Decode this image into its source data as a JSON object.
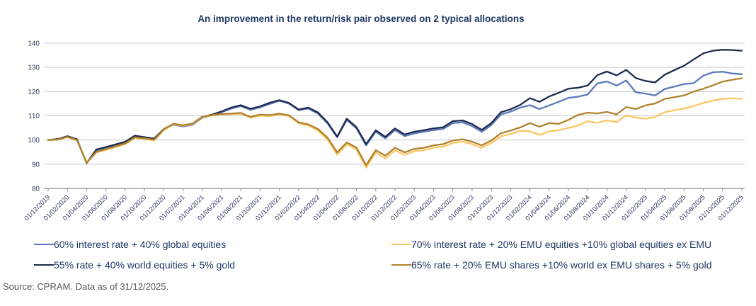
{
  "title": "An improvement in the return/risk pair observed on 2 typical allocations",
  "source": "Source: CPRAM. Data as of 31/12/2025.",
  "colors": {
    "navy": "#1f2c4f",
    "blue": "#5b7abc",
    "gold": "#b08230",
    "yellow": "#fac763",
    "title_text": "#1f3864",
    "axis_text": "#2e3b5e",
    "gridline": "#c9c9c9",
    "axis_line": "#8c8c8c",
    "source_text": "#595959"
  },
  "legend": {
    "items": [
      {
        "label": "60% interest rate + 40% global equities",
        "color_key": "blue"
      },
      {
        "label": "70% interest rate + 20% EMU equities +10% global equities ex EMU",
        "color_key": "yellow"
      },
      {
        "label": "55% rate + 40% world equities + 5% gold",
        "color_key": "navy"
      },
      {
        "label": "65% rate + 20% EMU shares +10% world ex EMU shares + 5% gold",
        "color_key": "gold"
      }
    ]
  },
  "chart_data": {
    "type": "line",
    "title": "An improvement in the return/risk pair observed on 2 typical allocations",
    "xlabel": "",
    "ylabel": "",
    "ylim": [
      80,
      140
    ],
    "y_ticks": [
      80,
      90,
      100,
      110,
      120,
      130,
      140
    ],
    "grid": "horizontal",
    "legend_position": "bottom",
    "x_frequency": "monthly",
    "x_start": "01/12/2019",
    "x_end": "01/12/2025",
    "x_tick_labels": [
      "01/12/2019",
      "01/02/2020",
      "01/04/2020",
      "01/06/2020",
      "01/08/2020",
      "01/10/2020",
      "01/12/2020",
      "01/02/2021",
      "01/04/2021",
      "01/06/2021",
      "01/08/2021",
      "01/10/2021",
      "01/12/2021",
      "01/02/2022",
      "01/04/2022",
      "01/06/2022",
      "01/08/2022",
      "01/10/2022",
      "01/12/2022",
      "01/02/2023",
      "01/04/2023",
      "01/06/2023",
      "01/08/2023",
      "01/10/2023",
      "01/12/2023",
      "01/02/2024",
      "01/04/2024",
      "01/06/2024",
      "01/08/2024",
      "01/10/2024",
      "01/12/2024",
      "01/02/2025",
      "01/04/2025",
      "01/06/2025",
      "01/08/2025",
      "01/10/2025",
      "01/12/2025"
    ],
    "series": [
      {
        "name": "60% interest rate + 40% global equities",
        "color_key": "blue",
        "values": [
          100,
          100.3,
          101.4,
          100.1,
          90.7,
          95.6,
          96.6,
          97.8,
          98.9,
          101.4,
          100.8,
          100.2,
          104.2,
          106.3,
          105.6,
          106.3,
          109.2,
          110.2,
          111.5,
          113.0,
          114.0,
          112.5,
          113.5,
          114.9,
          116.2,
          115.0,
          112.3,
          113.0,
          110.9,
          106.9,
          101.1,
          108.3,
          104.8,
          97.8,
          103.4,
          100.7,
          104.1,
          101.6,
          102.7,
          103.4,
          104.1,
          104.6,
          107.0,
          107.3,
          105.8,
          103.4,
          106.2,
          110.6,
          111.7,
          113.4,
          114.4,
          112.8,
          114.3,
          115.8,
          117.4,
          117.9,
          118.8,
          123.4,
          124.2,
          122.5,
          124.6,
          119.7,
          119.2,
          118.4,
          121.1,
          122.1,
          123.1,
          123.5,
          126.6,
          128.0,
          128.2,
          127.5,
          127.2
        ]
      },
      {
        "name": "55% rate + 40% world equities + 5% gold",
        "color_key": "navy",
        "values": [
          100,
          100.4,
          101.6,
          100.3,
          90.4,
          96.1,
          97.1,
          98.2,
          99.3,
          101.8,
          101.2,
          100.6,
          104.5,
          106.6,
          105.9,
          106.6,
          109.5,
          110.5,
          111.8,
          113.4,
          114.4,
          112.9,
          113.9,
          115.4,
          116.5,
          115.3,
          112.6,
          113.4,
          111.4,
          107.3,
          101.4,
          108.8,
          105.3,
          98.3,
          104.0,
          101.3,
          104.8,
          102.3,
          103.4,
          104.1,
          104.8,
          105.3,
          107.8,
          108.1,
          106.6,
          104.2,
          107.0,
          111.5,
          112.7,
          114.5,
          117.3,
          115.8,
          118.0,
          119.5,
          121.2,
          121.6,
          122.5,
          126.8,
          128.3,
          126.7,
          129.0,
          125.6,
          124.4,
          123.8,
          127.0,
          128.9,
          130.7,
          133.3,
          135.8,
          136.9,
          137.3,
          137.2,
          136.9
        ]
      },
      {
        "name": "70% interest rate + 20% EMU equities +10% global equities ex EMU",
        "color_key": "yellow",
        "values": [
          100,
          100.1,
          101.2,
          99.9,
          90.8,
          94.8,
          95.9,
          97.1,
          98.3,
          100.8,
          100.4,
          99.8,
          104.0,
          106.5,
          105.9,
          106.6,
          109.5,
          110.1,
          110.6,
          110.7,
          110.9,
          109.2,
          110.1,
          109.9,
          110.6,
          109.9,
          106.9,
          106.0,
          103.9,
          100.2,
          93.9,
          98.2,
          96.0,
          88.6,
          94.8,
          92.4,
          95.7,
          93.9,
          95.3,
          95.8,
          96.8,
          97.3,
          98.8,
          99.3,
          98.3,
          96.8,
          98.8,
          101.5,
          102.5,
          103.8,
          103.6,
          102.1,
          103.6,
          104.1,
          105.0,
          106.0,
          107.8,
          107.1,
          108.1,
          107.4,
          110.2,
          109.3,
          108.8,
          109.5,
          111.5,
          112.3,
          113.0,
          114.0,
          115.3,
          116.3,
          117.0,
          117.3,
          117.0
        ]
      },
      {
        "name": "65% rate + 20% EMU shares +10% world ex EMU shares + 5% gold",
        "color_key": "gold",
        "values": [
          100,
          100.2,
          101.3,
          100.0,
          90.5,
          95.1,
          96.2,
          97.4,
          98.6,
          101.1,
          100.7,
          100.1,
          104.4,
          106.7,
          106.1,
          106.8,
          109.7,
          110.3,
          110.8,
          110.9,
          111.2,
          109.6,
          110.5,
          110.3,
          110.9,
          110.2,
          107.3,
          106.5,
          104.6,
          101.0,
          94.9,
          99.0,
          96.9,
          89.6,
          95.8,
          93.5,
          96.8,
          94.9,
          96.3,
          96.8,
          97.8,
          98.3,
          99.8,
          100.3,
          99.3,
          97.8,
          99.8,
          102.8,
          103.9,
          105.2,
          107.0,
          105.5,
          107.0,
          106.7,
          108.3,
          110.4,
          111.3,
          111.0,
          111.6,
          110.6,
          113.6,
          112.8,
          114.3,
          115.1,
          117.0,
          117.7,
          118.4,
          120.0,
          121.2,
          122.6,
          124.1,
          124.9,
          125.5
        ]
      }
    ]
  }
}
